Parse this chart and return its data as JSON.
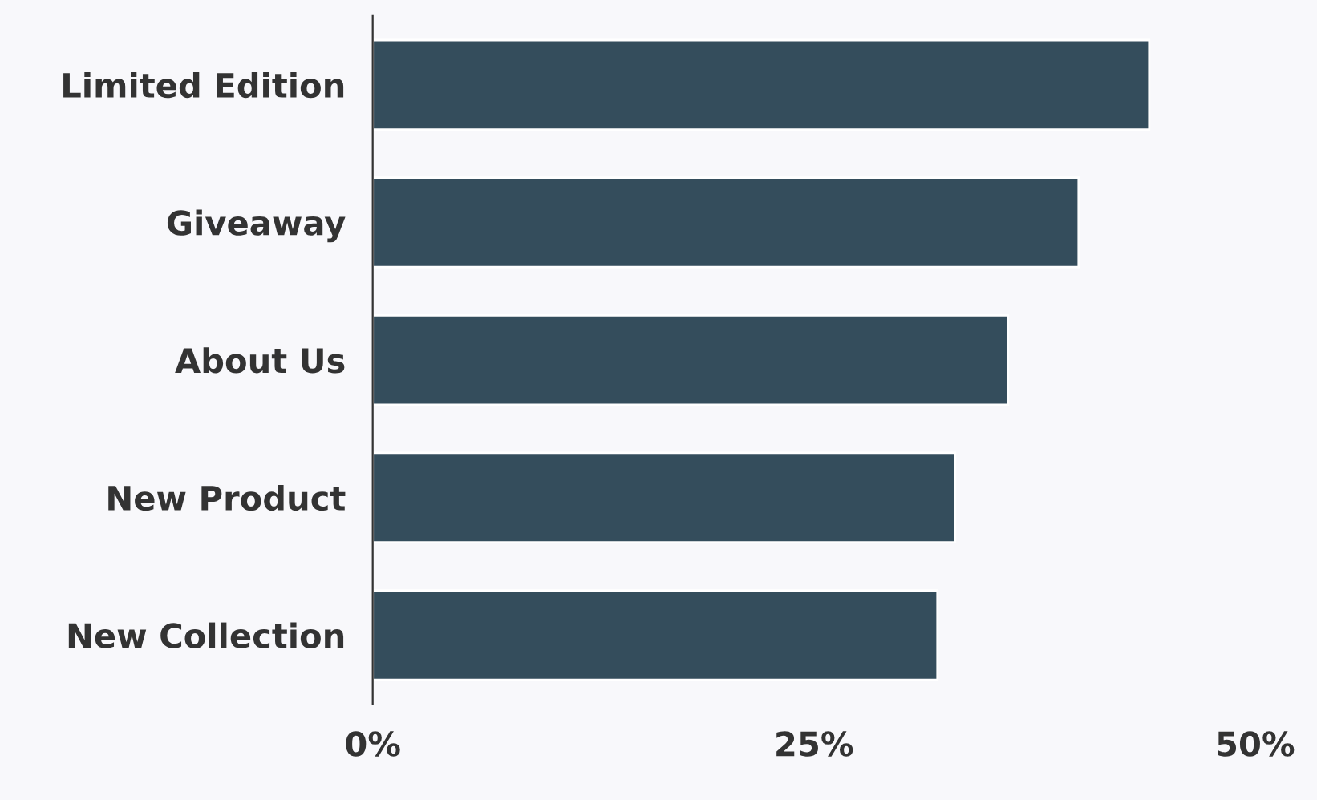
{
  "chart_data": {
    "type": "bar",
    "orientation": "horizontal",
    "categories": [
      "Limited Edition",
      "Giveaway",
      "About Us",
      "New Product",
      "New Collection"
    ],
    "values": [
      44,
      40,
      36,
      33,
      32
    ],
    "color": "#344d5c",
    "xlim": [
      0,
      50
    ],
    "xticks": [
      {
        "value": 0,
        "label": "0%"
      },
      {
        "value": 25,
        "label": "25%"
      },
      {
        "value": 50,
        "label": "50%"
      }
    ],
    "grid": false,
    "legend": false
  }
}
